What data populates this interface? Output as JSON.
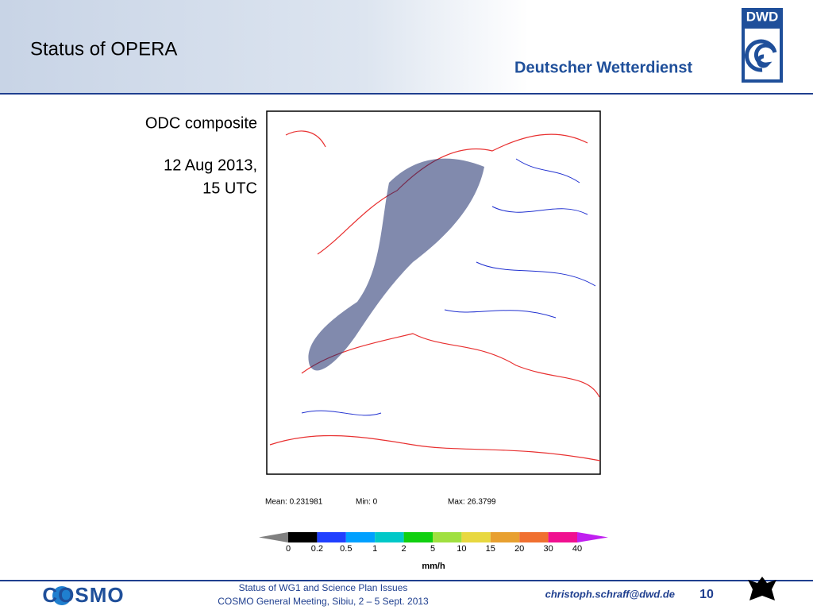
{
  "header": {
    "title": "Status of OPERA",
    "logo_text": "DWD",
    "organization": "Deutscher Wetterdienst"
  },
  "caption": {
    "product": "ODC composite",
    "date": "12 Aug 2013,",
    "time": "15 UTC"
  },
  "statistics": {
    "mean": "Mean: 0.231981",
    "min": "Min: 0",
    "max": "Max: 26.3799"
  },
  "colorbar": {
    "under_color": "#808080",
    "over_color": "#c020f0",
    "colors": [
      "#000000",
      "#2040ff",
      "#00a0ff",
      "#00c8c8",
      "#10d010",
      "#a0e040",
      "#e8d840",
      "#e8a030",
      "#f07030",
      "#f01090"
    ],
    "labels": [
      0,
      0.2,
      0.5,
      1,
      2,
      5,
      10,
      15,
      20,
      30,
      40
    ],
    "unit": "mm/h"
  },
  "footer": {
    "logo": "COSMO",
    "line1": "Status of WG1 and Science Plan Issues",
    "line2": "COSMO General Meeting, Sibiu, 2 – 5 Sept. 2013",
    "email": "christoph.schraff@dwd.de",
    "page": "10"
  }
}
